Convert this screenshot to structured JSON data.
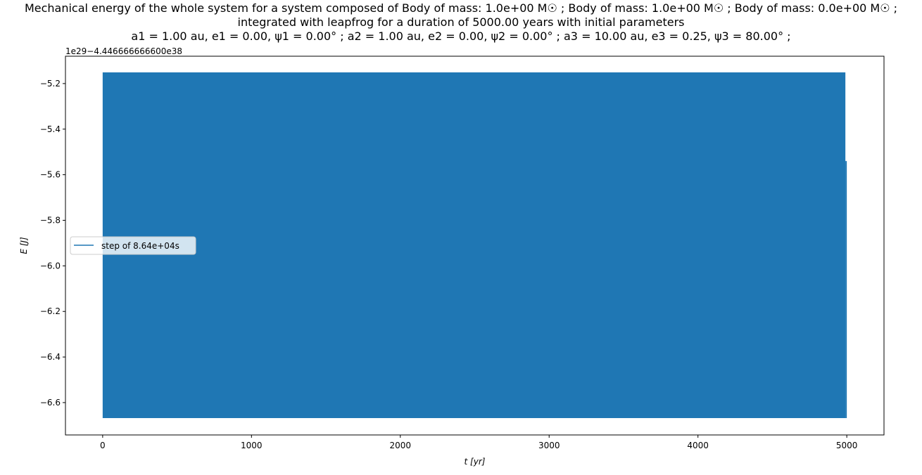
{
  "chart_data": {
    "type": "area",
    "title": [
      "Mechanical energy of the whole system for a system composed of Body of mass: 1.0e+00 M☉ ; Body of mass: 1.0e+00 M☉ ; Body of mass: 0.0e+00 M☉ ;",
      "integrated with leapfrog for a duration of 5000.00 years with initial parameters",
      "a1 = 1.00 au, e1 = 0.00, ψ1 = 0.00° ; a2 = 1.00 au, e2 = 0.00, ψ2 = 0.00° ; a3 = 10.00 au, e3 = 0.25, ψ3 = 80.00° ;"
    ],
    "xlabel": "t [yr]",
    "ylabel": "E [J]",
    "y_offset_text": "1e29−4.446666666600e38",
    "xlim": [
      -250,
      5250
    ],
    "ylim": [
      -6.742,
      -5.08
    ],
    "xticks": [
      0,
      1000,
      2000,
      3000,
      4000,
      5000
    ],
    "yticks": [
      -6.6,
      -6.4,
      -6.2,
      -6.0,
      -5.8,
      -5.6,
      -5.4,
      -5.2
    ],
    "ytick_labels": [
      "−6.6",
      "−6.4",
      "−6.2",
      "−6.0",
      "−5.8",
      "−5.6",
      "−5.4",
      "−5.2"
    ],
    "grid": false,
    "legend_position": "center-left",
    "series": [
      {
        "name": "step of 8.64e+04s",
        "color": "#1f77b4",
        "x": [
          0,
          5000
        ],
        "y_min": [
          -6.668,
          -6.668
        ],
        "y_max": [
          -5.151,
          -5.151
        ],
        "end_value": -5.54
      }
    ]
  }
}
